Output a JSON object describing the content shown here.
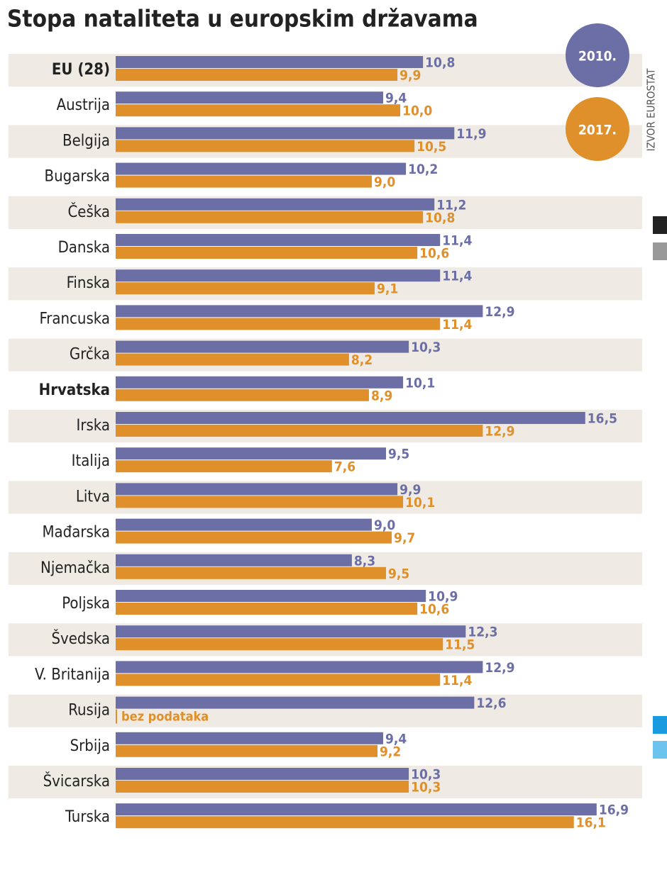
{
  "chart_data": {
    "type": "grouped-hbar",
    "title": "Stopa nataliteta u europskim državama",
    "source": "IZVOR EUROSTAT",
    "categories": [
      "EU (28)",
      "Austrija",
      "Belgija",
      "Bugarska",
      "Češka",
      "Danska",
      "Finska",
      "Francuska",
      "Grčka",
      "Hrvatska",
      "Irska",
      "Italija",
      "Litva",
      "Mađarska",
      "Njemačka",
      "Poljska",
      "Švedska",
      "V. Britanija",
      "Rusija",
      "Srbija",
      "Švicarska",
      "Turska"
    ],
    "highlight_indices": [
      0,
      9
    ],
    "series": [
      {
        "name": "2010.",
        "color": "#6b6fa6",
        "values": [
          10.8,
          9.4,
          11.9,
          10.2,
          11.2,
          11.4,
          11.4,
          12.9,
          10.3,
          10.1,
          16.5,
          9.5,
          9.9,
          9.0,
          8.3,
          10.9,
          12.3,
          12.9,
          12.6,
          9.4,
          10.3,
          16.9
        ],
        "value_labels": [
          "10,8",
          "9,4",
          "11,9",
          "10,2",
          "11,2",
          "11,4",
          "11,4",
          "12,9",
          "10,3",
          "10,1",
          "16,5",
          "9,5",
          "9,9",
          "9,0",
          "8,3",
          "10,9",
          "12,3",
          "12,9",
          "12,6",
          "9,4",
          "10,3",
          "16,9"
        ]
      },
      {
        "name": "2017.",
        "color": "#e0902a",
        "values": [
          9.9,
          10.0,
          10.5,
          9.0,
          10.8,
          10.6,
          9.1,
          11.4,
          8.2,
          8.9,
          12.9,
          7.6,
          10.1,
          9.7,
          9.5,
          10.6,
          11.5,
          11.4,
          null,
          9.2,
          10.3,
          16.1
        ],
        "value_labels": [
          "9,9",
          "10,0",
          "10,5",
          "9,0",
          "10,8",
          "10,6",
          "9,1",
          "11,4",
          "8,2",
          "8,9",
          "12,9",
          "7,6",
          "10,1",
          "9,7",
          "9,5",
          "10,6",
          "11,5",
          "11,4",
          null,
          "9,2",
          "10,3",
          "16,1"
        ]
      }
    ],
    "annotation": "bez podataka",
    "xlim": [
      0,
      18.5
    ]
  }
}
